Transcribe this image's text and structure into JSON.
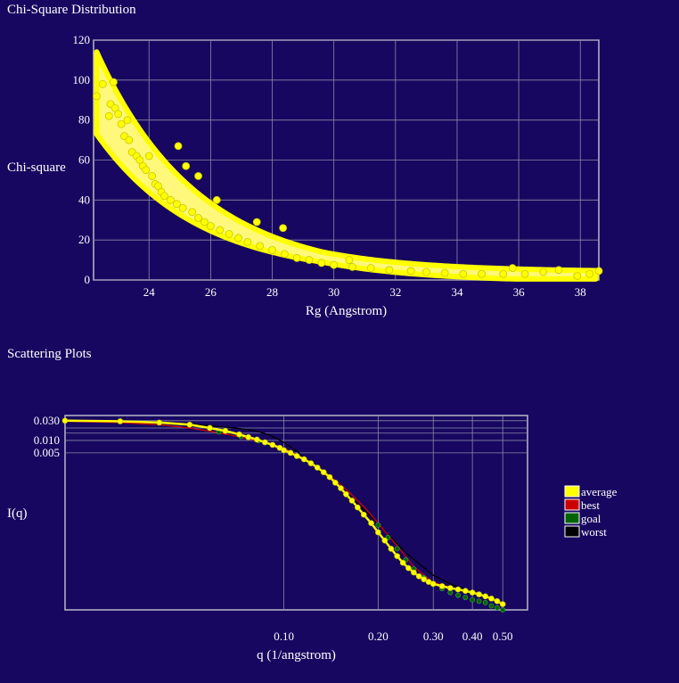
{
  "page": {
    "chi_title": "Chi-Square Distribution",
    "scatter_title": "Scattering Plots"
  },
  "colors": {
    "background": "#170760",
    "grid": "#8a8aa8",
    "axis": "#b8b8c8",
    "point": "#ffff00",
    "point_stroke": "#c8c800",
    "best": "#cc0000",
    "goal": "#006400",
    "worst": "#000000"
  },
  "chart_data": [
    {
      "type": "scatter",
      "title": "Chi-Square Distribution",
      "xlabel": "Rg (Angstrom)",
      "ylabel": "Chi-square",
      "xlim": [
        22.2,
        38.6
      ],
      "ylim": [
        0,
        120
      ],
      "x_ticks": [
        "24",
        "26",
        "28",
        "30",
        "32",
        "34",
        "36",
        "38"
      ],
      "x_tick_values": [
        24,
        26,
        28,
        30,
        32,
        34,
        36,
        38
      ],
      "y_ticks": [
        "0",
        "20",
        "40",
        "60",
        "80",
        "100",
        "120"
      ],
      "y_tick_values": [
        0,
        20,
        40,
        60,
        80,
        100,
        120
      ],
      "grid": true,
      "series": [
        {
          "points": [
            [
              22.3,
              92
            ],
            [
              22.5,
              98
            ],
            [
              22.7,
              82
            ],
            [
              22.75,
              88
            ],
            [
              22.85,
              99
            ],
            [
              22.9,
              86
            ],
            [
              23.0,
              83
            ],
            [
              23.1,
              78
            ],
            [
              23.2,
              72
            ],
            [
              23.3,
              80
            ],
            [
              23.35,
              70
            ],
            [
              23.45,
              64
            ],
            [
              23.6,
              62
            ],
            [
              23.7,
              60
            ],
            [
              23.8,
              57
            ],
            [
              23.9,
              55
            ],
            [
              24.0,
              62
            ],
            [
              24.1,
              52
            ],
            [
              24.2,
              48
            ],
            [
              24.3,
              47
            ],
            [
              24.4,
              44
            ],
            [
              24.5,
              42
            ],
            [
              24.7,
              40
            ],
            [
              24.9,
              38
            ],
            [
              24.95,
              67
            ],
            [
              25.1,
              36
            ],
            [
              25.2,
              57
            ],
            [
              25.4,
              34
            ],
            [
              25.6,
              52
            ],
            [
              25.6,
              31
            ],
            [
              25.8,
              29
            ],
            [
              26.0,
              27
            ],
            [
              26.2,
              40
            ],
            [
              26.3,
              25
            ],
            [
              26.6,
              23
            ],
            [
              26.9,
              21
            ],
            [
              27.2,
              19
            ],
            [
              27.5,
              29
            ],
            [
              27.6,
              17
            ],
            [
              28.0,
              15
            ],
            [
              28.35,
              26
            ],
            [
              28.4,
              13
            ],
            [
              28.8,
              11
            ],
            [
              29.2,
              10
            ],
            [
              29.6,
              8.5
            ],
            [
              30.0,
              7.5
            ],
            [
              30.5,
              10
            ],
            [
              30.6,
              6.5
            ],
            [
              31.2,
              6
            ],
            [
              31.8,
              5
            ],
            [
              32.5,
              4.5
            ],
            [
              33.0,
              4
            ],
            [
              33.6,
              3.5
            ],
            [
              34.2,
              3
            ],
            [
              34.8,
              3
            ],
            [
              35.5,
              3
            ],
            [
              35.8,
              6
            ],
            [
              36.2,
              3
            ],
            [
              36.8,
              4
            ],
            [
              37.3,
              5
            ],
            [
              37.9,
              2
            ],
            [
              38.3,
              3
            ],
            [
              38.6,
              4.5
            ]
          ]
        }
      ]
    },
    {
      "type": "line",
      "title": "Scattering Plots",
      "xlabel": "q (1/angstrom)",
      "ylabel": "I(q)",
      "x_scale": "log",
      "y_scale": "log",
      "xlim": [
        0.02,
        0.6
      ],
      "ylim": [
        8e-07,
        0.04
      ],
      "x_ticks": [
        "0.10",
        "0.20",
        "0.30",
        "0.40",
        "0.50"
      ],
      "x_tick_values": [
        0.1,
        0.2,
        0.3,
        0.4,
        0.5
      ],
      "y_ticks": [
        "0.030",
        "0.010",
        "0.005"
      ],
      "y_tick_values": [
        0.03,
        0.01,
        0.005
      ],
      "grid": true,
      "legend_position": "right",
      "series": [
        {
          "name": "average",
          "color": "#ffff00",
          "marker": "circle",
          "x": [
            0.02,
            0.03,
            0.04,
            0.05,
            0.058,
            0.065,
            0.072,
            0.077,
            0.082,
            0.087,
            0.092,
            0.097,
            0.1,
            0.105,
            0.11,
            0.116,
            0.122,
            0.128,
            0.134,
            0.14,
            0.146,
            0.152,
            0.158,
            0.165,
            0.172,
            0.18,
            0.19,
            0.2,
            0.21,
            0.22,
            0.23,
            0.24,
            0.25,
            0.26,
            0.27,
            0.28,
            0.29,
            0.3,
            0.32,
            0.34,
            0.36,
            0.38,
            0.4,
            0.42,
            0.44,
            0.46,
            0.48,
            0.5
          ],
          "y": [
            0.03,
            0.029,
            0.027,
            0.024,
            0.02,
            0.017,
            0.014,
            0.012,
            0.0105,
            0.009,
            0.0078,
            0.0066,
            0.0058,
            0.005,
            0.0042,
            0.0035,
            0.0028,
            0.0022,
            0.0017,
            0.0013,
            0.00095,
            0.0007,
            0.0005,
            0.00035,
            0.00024,
            0.00016,
            0.0001,
            6e-05,
            3.8e-05,
            2.4e-05,
            1.6e-05,
            1.1e-05,
            8.2e-06,
            6.4e-06,
            5.2e-06,
            4.4e-06,
            3.8e-06,
            3.4e-06,
            3e-06,
            2.7e-06,
            2.5e-06,
            2.3e-06,
            2.1e-06,
            1.9e-06,
            1.7e-06,
            1.5e-06,
            1.3e-06,
            1.1e-06
          ]
        },
        {
          "name": "best",
          "color": "#cc0000",
          "marker": "none",
          "x": [
            0.02,
            0.03,
            0.04,
            0.05,
            0.06,
            0.07,
            0.08,
            0.09,
            0.1,
            0.12,
            0.14,
            0.16,
            0.18,
            0.2,
            0.22,
            0.24,
            0.26,
            0.28,
            0.3,
            0.34,
            0.38,
            0.42,
            0.46,
            0.5
          ],
          "y": [
            0.029,
            0.027,
            0.024,
            0.02,
            0.016,
            0.0128,
            0.0103,
            0.0083,
            0.0066,
            0.0032,
            0.0014,
            0.0006,
            0.00025,
            0.0001,
            4.2e-05,
            1.9e-05,
            9e-06,
            5.5e-06,
            3.7e-06,
            2.8e-06,
            2.3e-06,
            1.9e-06,
            1.5e-06,
            1.1e-06
          ]
        },
        {
          "name": "goal",
          "color": "#006400",
          "marker": "star",
          "x": [
            0.062,
            0.073,
            0.083,
            0.2,
            0.215,
            0.23,
            0.245,
            0.26,
            0.28,
            0.3,
            0.32,
            0.34,
            0.36,
            0.38,
            0.4,
            0.42,
            0.44,
            0.46,
            0.48,
            0.5
          ],
          "y": [
            0.016,
            0.0125,
            0.0098,
            9e-05,
            4.5e-05,
            2.4e-05,
            1.3e-05,
            7.8e-06,
            4.8e-06,
            3.3e-06,
            2.6e-06,
            2.1e-06,
            1.8e-06,
            1.6e-06,
            1.4e-06,
            1.3e-06,
            1.2e-06,
            1e-06,
            9e-07,
            8e-07
          ]
        },
        {
          "name": "worst",
          "color": "#000000",
          "marker": "none",
          "x": [
            0.02,
            0.03,
            0.04,
            0.05,
            0.06,
            0.07,
            0.08,
            0.09,
            0.1,
            0.11,
            0.12,
            0.14,
            0.16,
            0.18,
            0.2,
            0.22,
            0.25,
            0.3,
            0.35,
            0.4,
            0.45,
            0.5
          ],
          "y": [
            0.03,
            0.029,
            0.027,
            0.025,
            0.022,
            0.02,
            0.0175,
            0.0135,
            0.009,
            0.0055,
            0.003,
            0.0012,
            0.0005,
            0.00021,
            0.0001,
            4.5e-05,
            1.7e-05,
            5.5e-06,
            3.1e-06,
            2.2e-06,
            1.6e-06,
            1.1e-06
          ]
        }
      ]
    }
  ]
}
